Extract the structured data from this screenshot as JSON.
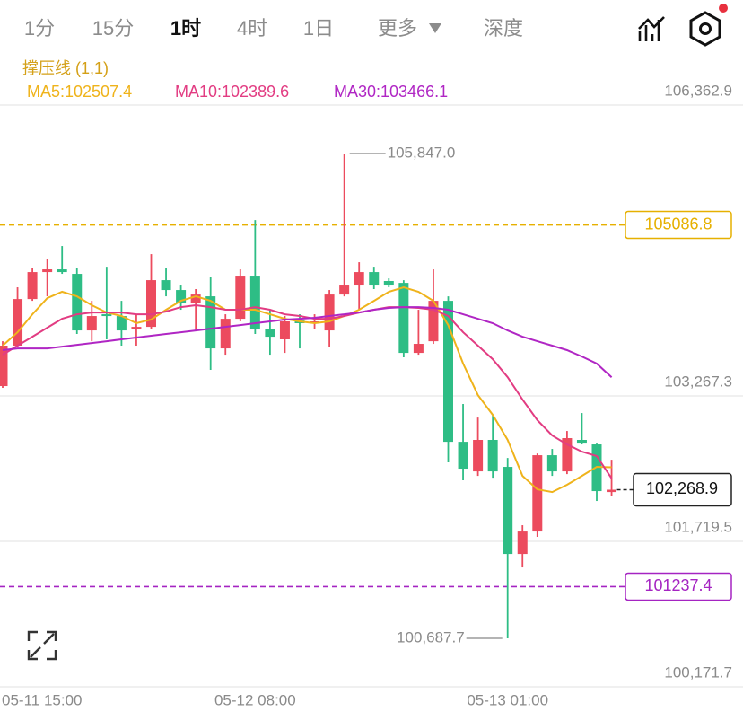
{
  "tabs": [
    "1分",
    "15分",
    "1时",
    "4时",
    "1日",
    "更多"
  ],
  "depth_tab": "深度",
  "indicator": "撑压线 (1,1)",
  "chart_data": {
    "type": "candlestick",
    "categories": [
      "05-11 15:00",
      null,
      null,
      null,
      null,
      null,
      null,
      null,
      null,
      null,
      null,
      null,
      null,
      null,
      null,
      null,
      null,
      "05-12 08:00",
      null,
      null,
      null,
      null,
      null,
      null,
      null,
      null,
      null,
      null,
      null,
      null,
      null,
      null,
      null,
      null,
      "05-13 01:00",
      null,
      null,
      null,
      null,
      null,
      null,
      null
    ],
    "ohlc": [
      [
        103372,
        103849,
        103353,
        103802
      ],
      [
        103802,
        104423,
        103783,
        104298
      ],
      [
        104298,
        104633,
        104279,
        104585
      ],
      [
        104585,
        104728,
        104327,
        104614
      ],
      [
        104614,
        104862,
        104566,
        104585
      ],
      [
        104566,
        104633,
        103926,
        103964
      ],
      [
        103964,
        104279,
        103849,
        104117
      ],
      [
        104136,
        104642,
        103869,
        104117
      ],
      [
        104117,
        104279,
        103802,
        103964
      ],
      [
        103983,
        104136,
        103802,
        104002
      ],
      [
        104002,
        104776,
        103983,
        104499
      ],
      [
        104499,
        104633,
        104327,
        104394
      ],
      [
        104394,
        104442,
        104184,
        104251
      ],
      [
        104251,
        104404,
        103964,
        104346
      ],
      [
        104327,
        104537,
        103544,
        103773
      ],
      [
        103773,
        104136,
        103706,
        104088
      ],
      [
        104088,
        104614,
        104060,
        104547
      ],
      [
        104547,
        105139,
        103926,
        103974
      ],
      [
        103974,
        104184,
        103706,
        103897
      ],
      [
        103869,
        104117,
        103725,
        104060
      ],
      [
        104069,
        104136,
        103773,
        104041
      ],
      [
        104041,
        104136,
        103983,
        104060
      ],
      [
        103964,
        104394,
        103792,
        104346
      ],
      [
        104346,
        105847.0,
        104327,
        104442
      ],
      [
        104442,
        104690,
        104184,
        104585
      ],
      [
        104585,
        104642,
        104404,
        104442
      ],
      [
        104490,
        104518,
        104423,
        104442
      ],
      [
        104470,
        104499,
        103678,
        103725
      ],
      [
        103725,
        104184,
        103706,
        103821
      ],
      [
        103849,
        104614,
        103821,
        104279
      ],
      [
        104279,
        104327,
        102560,
        102779
      ],
      [
        102779,
        103181,
        102369,
        102493
      ],
      [
        102464,
        103037,
        102416,
        102799
      ],
      [
        102799,
        103066,
        102397,
        102464
      ],
      [
        102512,
        102607,
        100687.7,
        101585
      ],
      [
        101585,
        101891,
        101442,
        101824
      ],
      [
        101824,
        102655,
        101767,
        102636
      ],
      [
        102636,
        102703,
        102416,
        102464
      ],
      [
        102464,
        102894,
        102435,
        102818
      ],
      [
        102799,
        103085,
        102751,
        102760
      ],
      [
        102751,
        102760,
        102149,
        102254
      ],
      [
        102244,
        102588,
        102206,
        102268.9
      ]
    ],
    "up_color": "#ec4b5e",
    "down_color": "#2ebd85",
    "series": [
      {
        "name": "MA5",
        "label": "MA5:102507.4",
        "color": "#efb31b",
        "values": [
          103802,
          103945,
          104136,
          104308,
          104375,
          104327,
          104232,
          104155,
          104117,
          104041,
          104079,
          104184,
          104279,
          104327,
          104279,
          104184,
          104184,
          104184,
          104136,
          104088,
          104060,
          104041,
          104060,
          104117,
          104184,
          104279,
          104375,
          104423,
          104375,
          104279,
          104021,
          103611,
          103276,
          103066,
          102799,
          102416,
          102273,
          102244,
          102321,
          102416,
          102512,
          102507.4
        ]
      },
      {
        "name": "MA10",
        "label": "MA10:102389.6",
        "color": "#e23c82",
        "values": [
          103706,
          103802,
          103897,
          103993,
          104088,
          104136,
          104155,
          104155,
          104155,
          104136,
          104136,
          104165,
          104212,
          104232,
          104212,
          104184,
          104184,
          104212,
          104184,
          104136,
          104117,
          104088,
          104088,
          104117,
          104155,
          104184,
          104212,
          104212,
          104203,
          104184,
          104117,
          103945,
          103802,
          103658,
          103467,
          103228,
          103009,
          102846,
          102751,
          102674,
          102627,
          102389.6
        ]
      },
      {
        "name": "MA30",
        "label": "MA30:103466.1",
        "color": "#b026c4",
        "values": [
          103754,
          103773,
          103773,
          103773,
          103792,
          103811,
          103830,
          103849,
          103869,
          103888,
          103907,
          103926,
          103945,
          103964,
          103983,
          104002,
          104021,
          104041,
          104060,
          104079,
          104088,
          104098,
          104117,
          104136,
          104155,
          104184,
          104203,
          104212,
          104212,
          104203,
          104184,
          104136,
          104088,
          104041,
          103964,
          103897,
          103849,
          103802,
          103754,
          103687,
          103611,
          103466.1
        ]
      }
    ],
    "ylim": [
      100124,
      106525
    ],
    "yticks": [
      {
        "value": 106362.9,
        "label": "106,362.9"
      },
      {
        "value": 103267.3,
        "label": "103,267.3"
      },
      {
        "value": 101719.5,
        "label": "101,719.5"
      },
      {
        "value": 100171.7,
        "label": "100,171.7"
      }
    ],
    "grid": true,
    "high_label": "105,847.0",
    "low_label": "100,687.7",
    "levels": [
      {
        "value": 105086.8,
        "label": "105086.8",
        "color": "#e6b000"
      },
      {
        "value": 101237.4,
        "label": "101237.4",
        "color": "#a524c2"
      }
    ],
    "last_price": {
      "value": 102268.9,
      "label": "102,268.9"
    }
  }
}
